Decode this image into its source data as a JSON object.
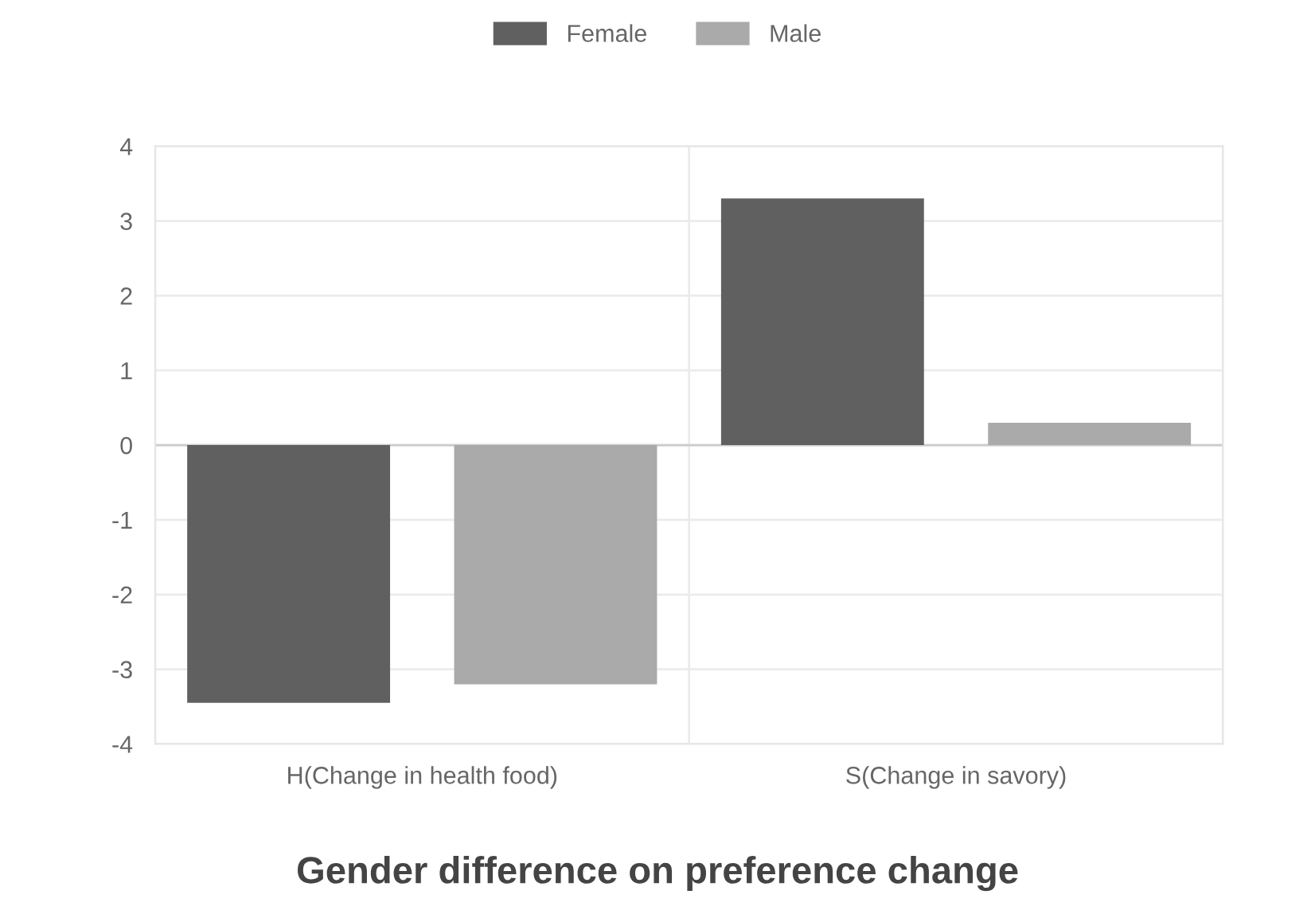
{
  "chart_data": {
    "type": "bar",
    "title": "Gender difference on preference change",
    "categories": [
      "H(Change in health food)",
      "S(Change in savory)"
    ],
    "series": [
      {
        "name": "Female",
        "color": "#606060",
        "values": [
          -3.45,
          3.3
        ]
      },
      {
        "name": "Male",
        "color": "#aaaaaa",
        "values": [
          -3.2,
          0.3
        ]
      }
    ],
    "ylim": [
      -4,
      4
    ],
    "yticks": [
      -4,
      -3,
      -2,
      -1,
      0,
      1,
      2,
      3,
      4
    ],
    "grid": true,
    "legend": "top"
  }
}
